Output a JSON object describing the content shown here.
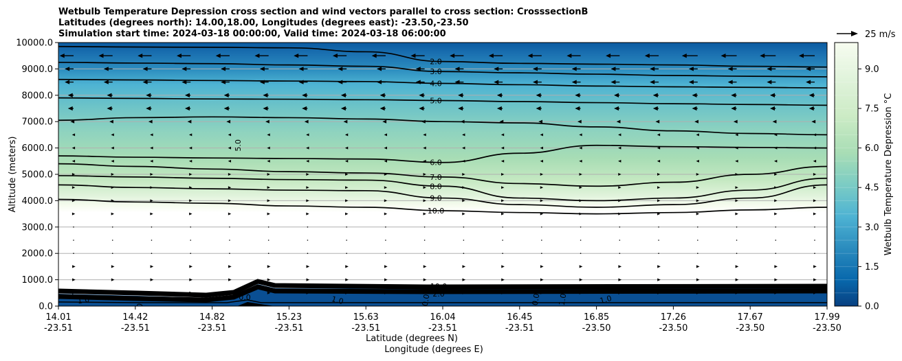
{
  "chart_data": {
    "type": "contour",
    "title_lines": [
      "Wetbulb Temperature Depression cross section and wind vectors parallel to cross section: CrosssectionB",
      "Latitudes (degrees north): 14.00,18.00, Longitudes (degrees east): -23.50,-23.50",
      "Simulation start time: 2024-03-18 00:00:00, Valid time: 2024-03-18 06:00:00"
    ],
    "ylabel": "Altitude (meters)",
    "xlabel_lat": "Latitude (degrees N)",
    "xlabel_lon": "Longitude (degrees E)",
    "ylim": [
      0,
      10000
    ],
    "y_ticks": [
      "0.0",
      "1000.0",
      "2000.0",
      "3000.0",
      "4000.0",
      "5000.0",
      "6000.0",
      "7000.0",
      "8000.0",
      "9000.0",
      "10000.0"
    ],
    "x_ticks": [
      {
        "lat": "14.01",
        "lon": "-23.51"
      },
      {
        "lat": "14.42",
        "lon": "-23.51"
      },
      {
        "lat": "14.82",
        "lon": "-23.51"
      },
      {
        "lat": "15.23",
        "lon": "-23.51"
      },
      {
        "lat": "15.63",
        "lon": "-23.51"
      },
      {
        "lat": "16.04",
        "lon": "-23.51"
      },
      {
        "lat": "16.45",
        "lon": "-23.51"
      },
      {
        "lat": "16.85",
        "lon": "-23.50"
      },
      {
        "lat": "17.26",
        "lon": "-23.50"
      },
      {
        "lat": "17.67",
        "lon": "-23.50"
      },
      {
        "lat": "17.99",
        "lon": "-23.50"
      }
    ],
    "colorbar": {
      "label": "Wetbulb Temperature Depression °C",
      "min": 0,
      "max": 10,
      "ticks": [
        "0.0",
        "1.5",
        "3.0",
        "4.5",
        "6.0",
        "7.5",
        "9.0"
      ]
    },
    "quiver_key": {
      "label": "25 m/s",
      "speed": 25
    },
    "contours": [
      {
        "level": 2.0,
        "label": "2.0",
        "alt": [
          9850,
          9830,
          9820,
          9800,
          9650,
          9280,
          9210,
          9180,
          9150,
          9100,
          9070
        ]
      },
      {
        "level": 3.0,
        "label": "3.0",
        "alt": [
          9250,
          9220,
          9200,
          9150,
          9100,
          8900,
          8850,
          8800,
          8750,
          8720,
          8700
        ]
      },
      {
        "level": 4.0,
        "label": "4.0",
        "alt": [
          8600,
          8580,
          8560,
          8540,
          8520,
          8450,
          8400,
          8350,
          8320,
          8300,
          8280
        ]
      },
      {
        "level": 5.0,
        "label": "5.0",
        "alt": [
          7900,
          7880,
          7860,
          7850,
          7830,
          7800,
          7760,
          7720,
          7680,
          7650,
          7620
        ]
      },
      {
        "level": 5.0,
        "label": "5.0",
        "alt": [
          7050,
          7150,
          7180,
          7150,
          7100,
          7000,
          6950,
          6800,
          6650,
          6550,
          6500
        ]
      },
      {
        "level": 6.0,
        "label": "6.0",
        "alt": [
          5700,
          5650,
          5620,
          5600,
          5580,
          5450,
          5800,
          6100,
          6050,
          6020,
          6000
        ]
      },
      {
        "level": 7.0,
        "label": "7.0",
        "alt": [
          5400,
          5300,
          5200,
          5100,
          5050,
          4900,
          4650,
          4550,
          4700,
          5000,
          5300
        ]
      },
      {
        "level": 8.0,
        "label": "8.0",
        "alt": [
          4950,
          4900,
          4850,
          4800,
          4780,
          4550,
          4100,
          4000,
          4100,
          4400,
          4850
        ]
      },
      {
        "level": 9.0,
        "label": "9.0",
        "alt": [
          4600,
          4500,
          4450,
          4400,
          4380,
          4100,
          3850,
          3750,
          3850,
          4100,
          4600
        ]
      },
      {
        "level": 10.0,
        "label": "10.0",
        "alt": [
          4050,
          3950,
          3900,
          3800,
          3750,
          3620,
          3550,
          3500,
          3550,
          3650,
          3750
        ]
      }
    ],
    "boundary_labels": [
      "1.0",
      "0.0",
      "1.0",
      "0.0",
      "1.0",
      "0.0",
      "0.0",
      "1.0",
      "1.0",
      "2.0",
      "5.0",
      "10.0"
    ]
  }
}
